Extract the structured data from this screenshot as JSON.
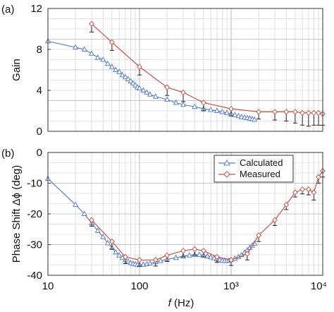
{
  "chart_data": [
    {
      "panel_label": "(a)",
      "type": "line",
      "ylabel": "Gain",
      "xscale": "log",
      "xlim": [
        10,
        10000
      ],
      "ylim": [
        0,
        12
      ],
      "yticks": [
        "0",
        "4",
        "8",
        "12"
      ],
      "grid": true,
      "series": [
        {
          "key": "calculated",
          "color": "#5b7fc4",
          "marker": "triangle",
          "x": [
            10,
            20,
            25,
            30,
            35,
            40,
            45,
            50,
            55,
            60,
            65,
            70,
            75,
            80,
            85,
            90,
            95,
            100,
            110,
            120,
            130,
            150,
            200,
            250,
            300,
            400,
            500,
            600,
            700,
            800,
            900,
            1000,
            1100,
            1200,
            1300,
            1400,
            1500,
            1600,
            1700,
            1800
          ],
          "y": [
            8.8,
            8.2,
            8.0,
            7.6,
            7.2,
            7.0,
            6.6,
            6.3,
            6.0,
            5.8,
            5.5,
            5.3,
            5.1,
            4.9,
            4.7,
            4.5,
            4.3,
            4.2,
            4.0,
            3.8,
            3.6,
            3.4,
            3.1,
            2.8,
            2.6,
            2.4,
            2.2,
            2.1,
            2.0,
            1.9,
            1.8,
            1.7,
            1.6,
            1.5,
            1.4,
            1.35,
            1.3,
            1.25,
            1.2,
            1.15
          ]
        },
        {
          "key": "measured",
          "color": "#c2544b",
          "marker": "diamond",
          "x": [
            30,
            50,
            100,
            200,
            300,
            500,
            1000,
            2000,
            3000,
            4000,
            5000,
            6000,
            7000,
            8000,
            9000,
            10000
          ],
          "y": [
            10.5,
            8.7,
            6.3,
            4.3,
            3.8,
            2.8,
            2.2,
            1.9,
            1.9,
            1.9,
            1.9,
            1.8,
            1.8,
            1.8,
            1.8,
            1.7
          ],
          "err": [
            0.8,
            0.8,
            0.8,
            0.8,
            0.9,
            0.8,
            0.7,
            0.7,
            0.8,
            0.9,
            1.1,
            1.2,
            1.3,
            1.2,
            1.2,
            1.1
          ]
        }
      ]
    },
    {
      "panel_label": "(b)",
      "type": "line",
      "ylabel": "Phase Shift Δϕ (deg)",
      "xlabel": "f (Hz)",
      "xscale": "log",
      "xlim": [
        10,
        10000
      ],
      "ylim": [
        -40,
        0
      ],
      "yticks": [
        "0",
        "-10",
        "-20",
        "-30",
        "-40"
      ],
      "xticks": [
        "10",
        "100",
        "10³",
        "10⁴"
      ],
      "grid": true,
      "legend": {
        "position": "top-right",
        "entries": [
          "Calculated",
          "Measured"
        ]
      },
      "series": [
        {
          "key": "calculated",
          "name": "Calculated",
          "color": "#5b7fc4",
          "marker": "triangle",
          "x": [
            10,
            20,
            25,
            30,
            35,
            40,
            45,
            50,
            55,
            60,
            65,
            70,
            75,
            80,
            85,
            90,
            95,
            100,
            110,
            120,
            130,
            150,
            170,
            200,
            250,
            300,
            350,
            400,
            450,
            500,
            550,
            600,
            650,
            700,
            750,
            800,
            850,
            900,
            950,
            1000,
            1100,
            1200,
            1300,
            1400,
            1500,
            1600,
            1700,
            1800
          ],
          "y": [
            -8.5,
            -17,
            -20,
            -23,
            -25.5,
            -27.5,
            -29.5,
            -31,
            -32.5,
            -33.5,
            -34.3,
            -35,
            -35.5,
            -36,
            -36.2,
            -36.4,
            -36.5,
            -36.6,
            -36.5,
            -36.3,
            -36.1,
            -35.7,
            -35.3,
            -34.8,
            -34.3,
            -33.8,
            -33.5,
            -33.3,
            -33.3,
            -33.5,
            -33.8,
            -34.1,
            -34.4,
            -34.7,
            -35,
            -35.2,
            -35.3,
            -35.3,
            -35.2,
            -35,
            -34.6,
            -34,
            -33.4,
            -32.6,
            -31.8,
            -31,
            -30.3,
            -29.6
          ]
        },
        {
          "key": "measured",
          "name": "Measured",
          "color": "#c2544b",
          "marker": "diamond",
          "x": [
            30,
            50,
            70,
            100,
            150,
            200,
            300,
            400,
            500,
            700,
            1000,
            1500,
            2000,
            3000,
            4000,
            5000,
            6000,
            7000,
            8000,
            9000,
            10000
          ],
          "y": [
            -22,
            -29,
            -34,
            -35,
            -35,
            -33.5,
            -32,
            -31.5,
            -32,
            -34,
            -35,
            -33,
            -27,
            -22,
            -17,
            -13,
            -12,
            -12,
            -13,
            -8,
            -6
          ],
          "err": [
            2,
            2.5,
            2.2,
            2,
            2,
            2,
            2,
            2,
            2,
            1.8,
            1.8,
            2,
            2,
            1.8,
            1.6,
            1.5,
            1.5,
            1.8,
            2.5,
            2,
            2
          ]
        }
      ]
    }
  ]
}
